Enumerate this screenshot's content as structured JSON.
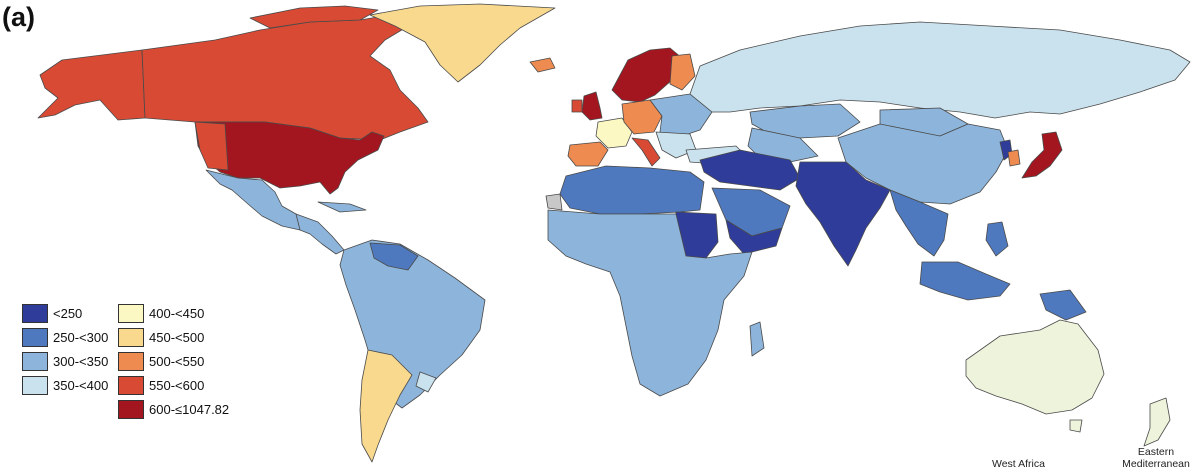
{
  "panel_label": "(a)",
  "legend": [
    {
      "label": "<250",
      "color": "#2f3c9a"
    },
    {
      "label": "250-<300",
      "color": "#4f79bf"
    },
    {
      "label": "300-<350",
      "color": "#8db4da"
    },
    {
      "label": "350-<400",
      "color": "#cae2ee"
    },
    {
      "label": "400-<450",
      "color": "#fcf8c4"
    },
    {
      "label": "450-<500",
      "color": "#f8d98e"
    },
    {
      "label": "500-<550",
      "color": "#ee8b50"
    },
    {
      "label": "550-<600",
      "color": "#d84a34"
    },
    {
      "label": "600-≤1047.82",
      "color": "#a3161f"
    }
  ],
  "insets": {
    "west_africa": "West Africa",
    "eastern_med_1": "Eastern",
    "eastern_med_2": "Mediterranean"
  },
  "colors": {
    "ocean": "#ffffff",
    "border": "#4a4a4a",
    "no_data": "#c8c8c8",
    "australia": "#eef4dc"
  }
}
